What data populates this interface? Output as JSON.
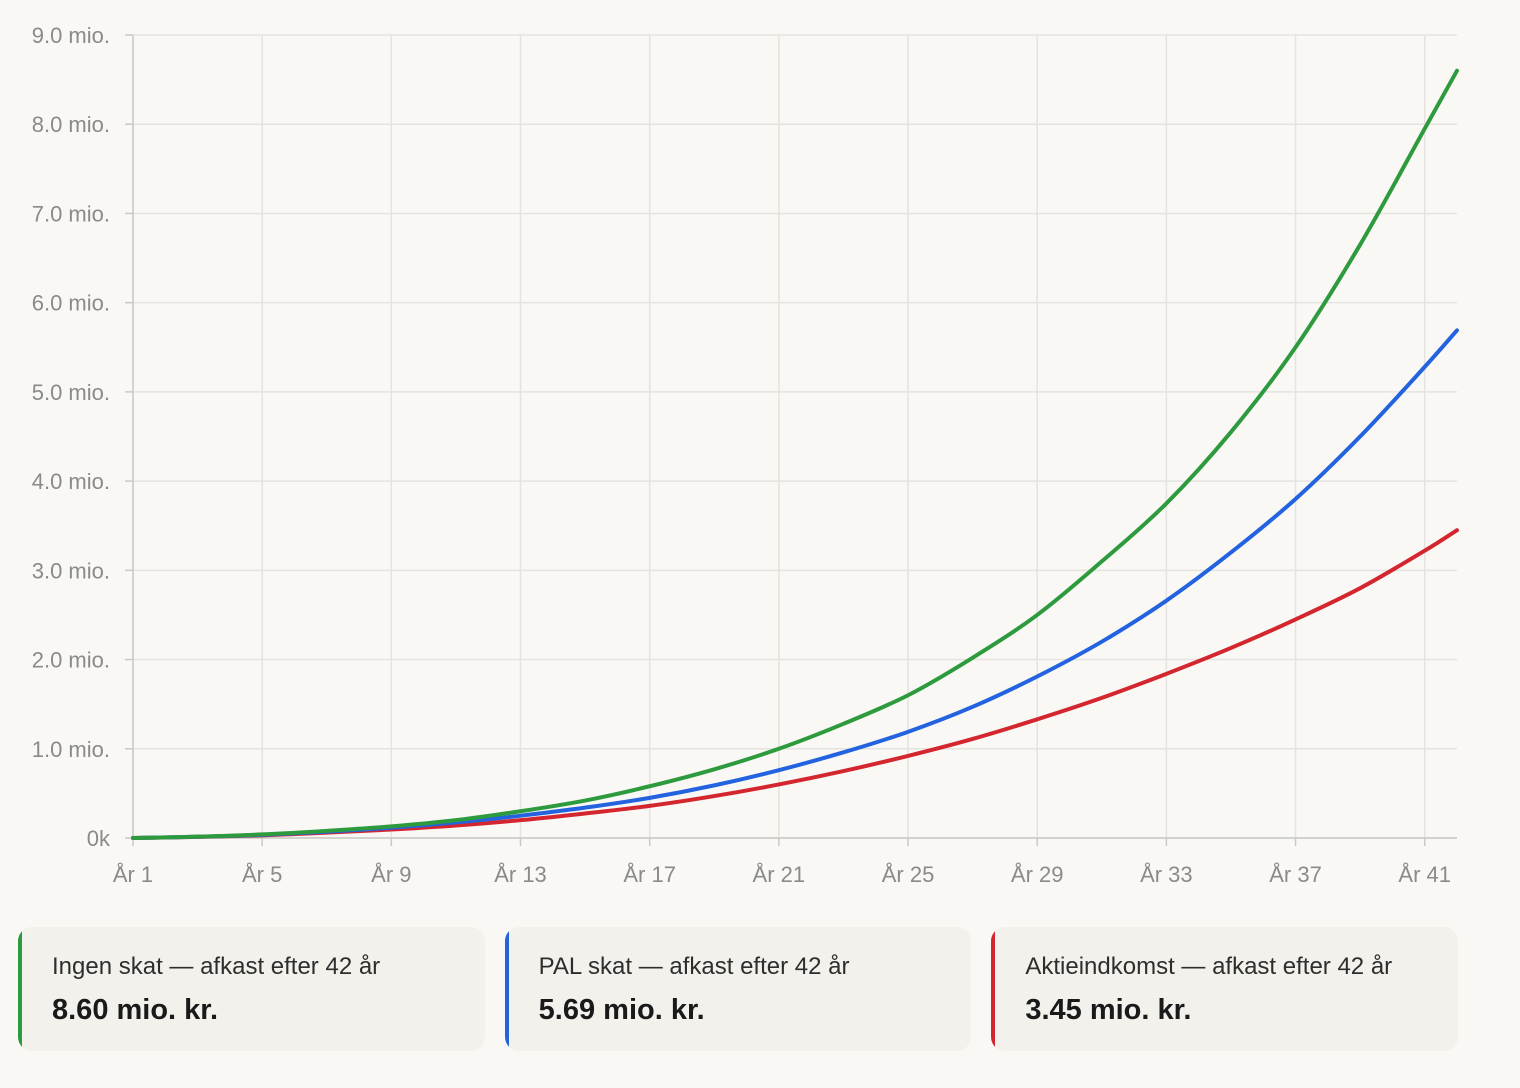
{
  "chart_data": {
    "type": "line",
    "x_tick_labels": [
      "År 1",
      "År 5",
      "År 9",
      "År 13",
      "År 17",
      "År 21",
      "År 25",
      "År 29",
      "År 33",
      "År 37",
      "År 41"
    ],
    "y_tick_labels": [
      "0k",
      "1.0 mio.",
      "2.0 mio.",
      "3.0 mio.",
      "4.0 mio.",
      "5.0 mio.",
      "6.0 mio.",
      "7.0 mio.",
      "8.0 mio.",
      "9.0 mio."
    ],
    "xlim": [
      1,
      42
    ],
    "ylim": [
      0,
      9000000
    ],
    "grid": true,
    "x": [
      1,
      3,
      5,
      7,
      9,
      11,
      13,
      15,
      17,
      19,
      21,
      23,
      25,
      27,
      29,
      31,
      33,
      35,
      37,
      39,
      41,
      42
    ],
    "series": [
      {
        "color": "#2e9a3e",
        "values": [
          0,
          15000,
          40000,
          80000,
          130000,
          200000,
          300000,
          420000,
          580000,
          770000,
          1000000,
          1280000,
          1600000,
          2020000,
          2500000,
          3100000,
          3750000,
          4550000,
          5500000,
          6650000,
          7950000,
          8600000
        ]
      },
      {
        "color": "#2463e0",
        "values": [
          0,
          14000,
          35000,
          70000,
          115000,
          175000,
          250000,
          340000,
          450000,
          590000,
          760000,
          960000,
          1190000,
          1470000,
          1810000,
          2200000,
          2660000,
          3200000,
          3800000,
          4500000,
          5280000,
          5690000
        ]
      },
      {
        "color": "#d4262e",
        "values": [
          0,
          12000,
          30000,
          60000,
          95000,
          140000,
          200000,
          275000,
          360000,
          470000,
          600000,
          750000,
          920000,
          1110000,
          1330000,
          1570000,
          1840000,
          2130000,
          2450000,
          2800000,
          3220000,
          3450000
        ]
      }
    ]
  },
  "cards": [
    {
      "label": "Ingen skat — afkast efter 42 år",
      "value": "8.60 mio. kr.",
      "color": "#2e9a3e"
    },
    {
      "label": "PAL skat — afkast efter 42 år",
      "value": "5.69 mio. kr.",
      "color": "#2463e0"
    },
    {
      "label": "Aktieindkomst — afkast efter 42 år",
      "value": "3.45 mio. kr.",
      "color": "#d4262e"
    }
  ]
}
